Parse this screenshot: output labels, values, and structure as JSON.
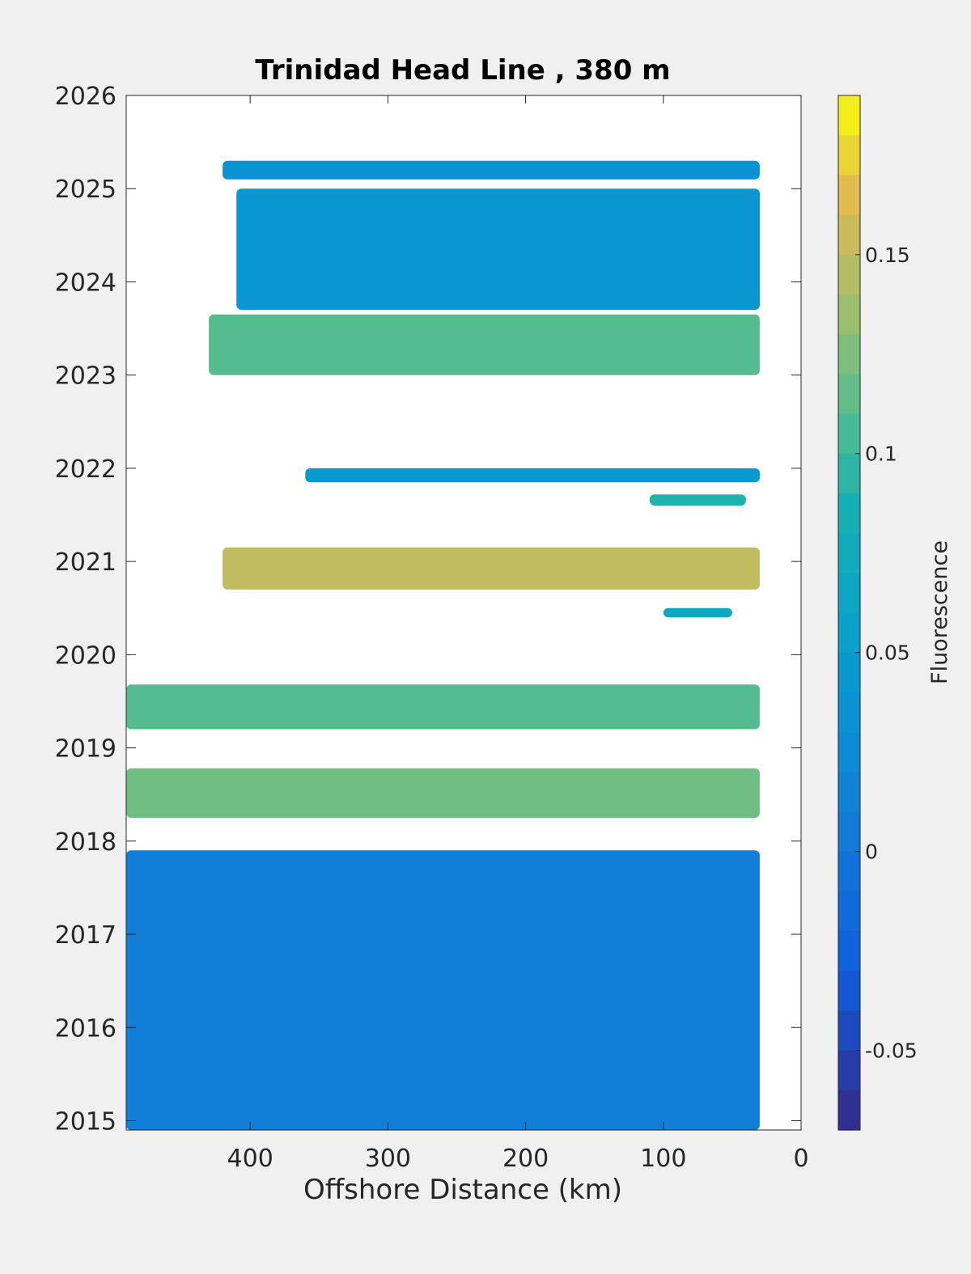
{
  "chart_data": {
    "type": "heatmap",
    "title": "Trinidad Head Line , 380 m",
    "xlabel": "Offshore Distance (km)",
    "ylabel": "",
    "x_direction": "reversed",
    "xlim": [
      0,
      490
    ],
    "ylim": [
      2014.9,
      2026
    ],
    "xticks": [
      "400",
      "300",
      "200",
      "100",
      "0"
    ],
    "xtick_values": [
      400,
      300,
      200,
      100,
      0
    ],
    "yticks": [
      "2015",
      "2016",
      "2017",
      "2018",
      "2019",
      "2020",
      "2021",
      "2022",
      "2023",
      "2024",
      "2025",
      "2026"
    ],
    "ytick_values": [
      2015,
      2016,
      2017,
      2018,
      2019,
      2020,
      2021,
      2022,
      2023,
      2024,
      2025,
      2026
    ],
    "colorbar": {
      "label": "Fluorescence",
      "clim": [
        -0.07,
        0.19
      ],
      "ticks": [
        "-0.05",
        "0",
        "0.05",
        "0.1",
        "0.15"
      ],
      "tick_values": [
        -0.05,
        0,
        0.05,
        0.1,
        0.15
      ],
      "colormap": "parula"
    },
    "bands": [
      {
        "period": "2025",
        "x_range": [
          30,
          420
        ],
        "y_range": [
          2025.1,
          2025.3
        ],
        "fluorescence": 0.035
      },
      {
        "period": "2024-2025",
        "x_range": [
          30,
          410
        ],
        "y_range": [
          2023.7,
          2025.0
        ],
        "fluorescence": 0.04
      },
      {
        "period": "2023",
        "x_range": [
          30,
          430
        ],
        "y_range": [
          2023.0,
          2023.65
        ],
        "fluorescence": 0.11
      },
      {
        "period": "2022",
        "x_range": [
          30,
          360
        ],
        "y_range": [
          2021.85,
          2022.0
        ],
        "fluorescence": 0.045
      },
      {
        "period": "2021 (small)",
        "x_range": [
          40,
          110
        ],
        "y_range": [
          2021.6,
          2021.72
        ],
        "fluorescence": 0.09
      },
      {
        "period": "2021",
        "x_range": [
          30,
          420
        ],
        "y_range": [
          2020.7,
          2021.15
        ],
        "fluorescence": 0.15
      },
      {
        "period": "2020 (small)",
        "x_range": [
          50,
          100
        ],
        "y_range": [
          2020.4,
          2020.5
        ],
        "fluorescence": 0.07
      },
      {
        "period": "2019",
        "x_range": [
          30,
          490
        ],
        "y_range": [
          2019.2,
          2019.68
        ],
        "fluorescence": 0.11
      },
      {
        "period": "2018",
        "x_range": [
          30,
          490
        ],
        "y_range": [
          2018.25,
          2018.78
        ],
        "fluorescence": 0.12
      },
      {
        "period": "2015-2017",
        "x_range": [
          30,
          490
        ],
        "y_range": [
          2014.9,
          2017.9
        ],
        "fluorescence": 0.01
      }
    ],
    "grid": false,
    "legend": "colorbar-right"
  }
}
